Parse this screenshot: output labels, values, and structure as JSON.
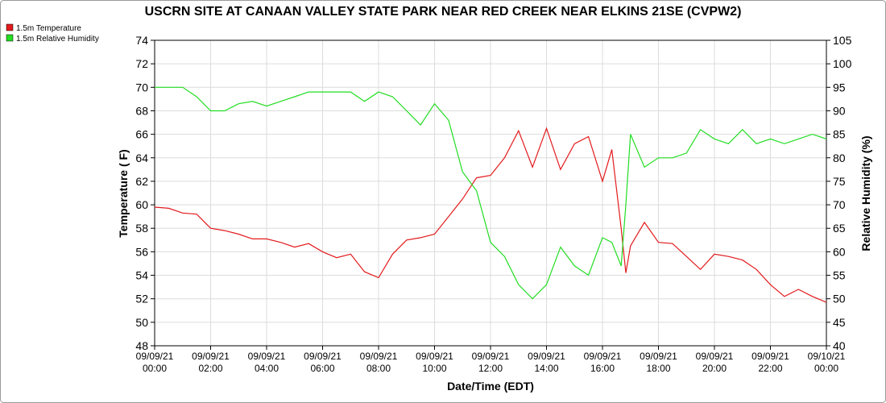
{
  "chart_data": {
    "type": "line",
    "title": "USCRN SITE AT CANAAN VALLEY STATE PARK NEAR RED CREEK NEAR ELKINS 21SE (CVPW2)",
    "x_label": "Date/Time (EDT)",
    "y_label": "Temperature ( F)",
    "y2_label": "Relative Humidity (%)",
    "x": [
      "09/09/21 00:00",
      "09/09/21 00:30",
      "09/09/21 01:00",
      "09/09/21 01:30",
      "09/09/21 02:00",
      "09/09/21 02:30",
      "09/09/21 03:00",
      "09/09/21 03:30",
      "09/09/21 04:00",
      "09/09/21 04:30",
      "09/09/21 05:00",
      "09/09/21 05:30",
      "09/09/21 06:00",
      "09/09/21 06:30",
      "09/09/21 07:00",
      "09/09/21 07:30",
      "09/09/21 08:00",
      "09/09/21 08:30",
      "09/09/21 09:00",
      "09/09/21 09:30",
      "09/09/21 10:00",
      "09/09/21 10:30",
      "09/09/21 11:00",
      "09/09/21 11:30",
      "09/09/21 12:00",
      "09/09/21 12:30",
      "09/09/21 13:00",
      "09/09/21 13:30",
      "09/09/21 14:00",
      "09/09/21 14:30",
      "09/09/21 15:00",
      "09/09/21 15:30",
      "09/09/21 16:00",
      "09/09/21 16:20",
      "09/09/21 16:40",
      "09/09/21 16:50",
      "09/09/21 17:00",
      "09/09/21 17:30",
      "09/09/21 18:00",
      "09/09/21 18:30",
      "09/09/21 19:00",
      "09/09/21 19:30",
      "09/09/21 20:00",
      "09/09/21 20:30",
      "09/09/21 21:00",
      "09/09/21 21:30",
      "09/09/21 22:00",
      "09/09/21 22:30",
      "09/09/21 23:00",
      "09/09/21 23:30",
      "09/10/21 00:00"
    ],
    "series": [
      {
        "name": "1.5m Temperature",
        "color": "#e31a1c",
        "axis": "y",
        "values": [
          59.8,
          59.7,
          59.3,
          59.2,
          58.0,
          57.8,
          57.5,
          57.1,
          57.1,
          56.8,
          56.4,
          56.7,
          56.0,
          55.5,
          55.8,
          54.3,
          53.8,
          55.8,
          57.0,
          57.2,
          57.5,
          59.0,
          60.5,
          62.3,
          62.5,
          64.0,
          66.3,
          63.2,
          66.5,
          63.0,
          65.2,
          65.8,
          62.0,
          64.7,
          58.0,
          54.2,
          56.5,
          58.5,
          56.8,
          56.7,
          55.6,
          54.5,
          55.8,
          55.6,
          55.3,
          54.5,
          53.2,
          52.2,
          52.8,
          52.2,
          51.7
        ]
      },
      {
        "name": "1.5m Relative Humidity",
        "color": "#22dd22",
        "axis": "y2",
        "values": [
          95,
          95,
          95,
          93,
          90,
          90,
          91.5,
          92,
          91,
          92,
          93,
          94,
          94,
          94,
          94,
          92,
          94,
          93,
          90,
          87,
          91.5,
          88,
          77,
          73,
          62,
          59,
          53,
          50,
          53,
          61,
          57,
          55,
          63,
          62,
          57,
          70,
          85,
          78,
          80,
          80,
          81,
          86,
          84,
          83,
          86,
          83,
          84,
          83,
          84,
          85,
          84
        ]
      }
    ],
    "xlim": [
      "09/09/21 00:00",
      "09/10/21 00:00"
    ],
    "xticks": [
      "09/09/21 00:00",
      "09/09/21 02:00",
      "09/09/21 04:00",
      "09/09/21 06:00",
      "09/09/21 08:00",
      "09/09/21 10:00",
      "09/09/21 12:00",
      "09/09/21 14:00",
      "09/09/21 16:00",
      "09/09/21 18:00",
      "09/09/21 20:00",
      "09/09/21 22:00",
      "09/10/21 00:00"
    ],
    "ylim": [
      48,
      74
    ],
    "yticks": [
      48,
      50,
      52,
      54,
      56,
      58,
      60,
      62,
      64,
      66,
      68,
      70,
      72,
      74
    ],
    "y2lim": [
      40,
      105
    ],
    "y2ticks": [
      40,
      45,
      50,
      55,
      60,
      65,
      70,
      75,
      80,
      85,
      90,
      95,
      100,
      105
    ],
    "grid": true,
    "legend": "top-left"
  }
}
